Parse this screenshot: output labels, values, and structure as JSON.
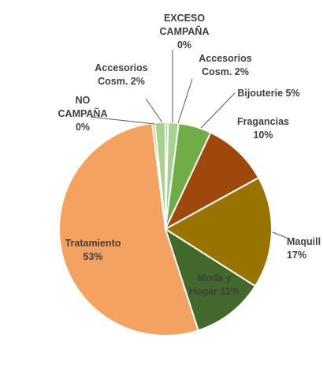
{
  "chart_data": {
    "type": "pie",
    "title": "",
    "slices": [
      {
        "label_lines": [
          "EXCESO",
          "CAMPAÑA",
          "0%"
        ],
        "value": 0.4,
        "color": "#ffc000"
      },
      {
        "label_lines": [
          "Accesorios",
          "Cosm. 2%"
        ],
        "value": 1.6,
        "color": "#a9d18e"
      },
      {
        "label_lines": [
          "Bijouterie 5%"
        ],
        "value": 5,
        "color": "#70ad47"
      },
      {
        "label_lines": [
          "Fragancias",
          "10%"
        ],
        "value": 10,
        "color": "#9e480e"
      },
      {
        "label_lines": [
          "Maquill",
          "17%"
        ],
        "value": 17,
        "color": "#997300"
      },
      {
        "label_lines": [
          "Moda y",
          "Hogar 11%"
        ],
        "value": 11,
        "color": "#43682b"
      },
      {
        "label_lines": [
          "Tratamiento",
          "53%"
        ],
        "value": 53,
        "color": "#f4a261"
      },
      {
        "label_lines": [
          "NO",
          "CAMPAÑA",
          "0%"
        ],
        "value": 0.4,
        "color": "#f0a060"
      },
      {
        "label_lines": [
          "Accesorios",
          "Cosm. 2%"
        ],
        "value": 1.6,
        "color": "#a9d18e"
      }
    ],
    "legend": "none"
  }
}
